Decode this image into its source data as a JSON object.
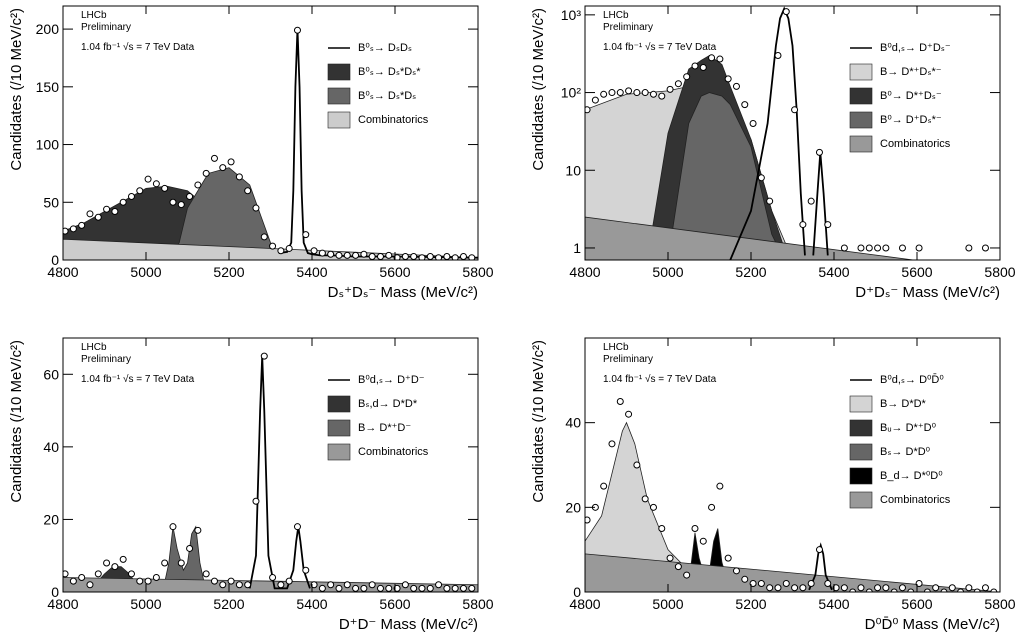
{
  "chart_data": [
    {
      "type": "fit",
      "x_label": "Dₛ⁺Dₛ⁻ Mass (MeV/c²)",
      "y_label": "Candidates (/10 MeV/c²)",
      "annotations": [
        "LHCb",
        "Preliminary",
        "1.04 fb⁻¹ √s = 7 TeV Data"
      ],
      "xlim": [
        4800,
        5800
      ],
      "xticks": [
        4800,
        5000,
        5200,
        5400,
        5600,
        5800
      ],
      "ylim": [
        0,
        220
      ],
      "yticks": [
        0,
        50,
        100,
        150,
        200
      ],
      "log": false,
      "legend": "upper right",
      "data": {
        "color": "#000000",
        "x": [
          4805,
          4825,
          4845,
          4865,
          4885,
          4905,
          4925,
          4945,
          4965,
          4985,
          5005,
          5025,
          5045,
          5065,
          5085,
          5105,
          5125,
          5145,
          5165,
          5185,
          5205,
          5225,
          5245,
          5265,
          5285,
          5305,
          5325,
          5345,
          5365,
          5385,
          5405,
          5425,
          5445,
          5465,
          5485,
          5505,
          5525,
          5545,
          5565,
          5585,
          5605,
          5625,
          5645,
          5665,
          5685,
          5705,
          5725,
          5745,
          5765,
          5785
        ],
        "values": [
          25,
          27,
          30,
          40,
          37,
          44,
          42,
          50,
          55,
          60,
          70,
          66,
          62,
          50,
          48,
          55,
          65,
          75,
          88,
          80,
          85,
          72,
          60,
          45,
          20,
          12,
          8,
          10,
          199,
          22,
          8,
          6,
          5,
          4,
          4,
          4,
          5,
          3,
          3,
          4,
          2,
          3,
          3,
          2,
          3,
          2,
          3,
          2,
          3,
          2
        ]
      },
      "series": [
        {
          "name": "B⁰ₛ→ DₛDₛ",
          "kind": "line",
          "color": "#000000",
          "x": [
            5320,
            5340,
            5350,
            5355,
            5360,
            5365,
            5370,
            5375,
            5380,
            5390,
            5400,
            5420,
            5450,
            5500,
            5600,
            5800
          ],
          "values": [
            6,
            7,
            15,
            60,
            150,
            200,
            150,
            60,
            15,
            6,
            5,
            4,
            4,
            3,
            3,
            2
          ]
        },
        {
          "name": "B⁰ₛ→ Dₛ*Dₛ*",
          "kind": "area",
          "color": "#333333",
          "x": [
            4800,
            4850,
            4900,
            4950,
            5000,
            5050,
            5100,
            5150,
            5200,
            5220,
            5240
          ],
          "values": [
            25,
            32,
            42,
            52,
            62,
            64,
            60,
            45,
            20,
            8,
            0
          ]
        },
        {
          "name": "B⁰ₛ→ Dₛ*Dₛ",
          "kind": "area",
          "color": "#666666",
          "x": [
            5050,
            5080,
            5100,
            5150,
            5200,
            5250,
            5280,
            5300,
            5320
          ],
          "values": [
            0,
            15,
            45,
            75,
            80,
            65,
            35,
            15,
            3
          ]
        },
        {
          "name": "Combinatorics",
          "kind": "area",
          "color": "#cccccc",
          "x": [
            4800,
            5800
          ],
          "values": [
            18,
            2
          ]
        }
      ]
    },
    {
      "type": "fit",
      "x_label": "D⁺Dₛ⁻ Mass (MeV/c²)",
      "y_label": "Candidates (/10 MeV/c²)",
      "annotations": [
        "LHCb",
        "Preliminary",
        "1.04 fb⁻¹ √s = 7 TeV Data"
      ],
      "xlim": [
        4800,
        5800
      ],
      "xticks": [
        4800,
        5000,
        5200,
        5400,
        5600,
        5800
      ],
      "ylim": [
        0.7,
        1300
      ],
      "yticks": [
        1,
        10,
        {
          "value": 100,
          "label": "10²"
        },
        {
          "value": 1000,
          "label": "10³"
        }
      ],
      "log": true,
      "legend": "upper right",
      "data": {
        "color": "#000000",
        "x": [
          4805,
          4825,
          4845,
          4865,
          4885,
          4905,
          4925,
          4945,
          4965,
          4985,
          5005,
          5025,
          5045,
          5065,
          5085,
          5105,
          5125,
          5145,
          5165,
          5185,
          5205,
          5225,
          5245,
          5265,
          5285,
          5305,
          5325,
          5345,
          5365,
          5385,
          5405,
          5425,
          5445,
          5465,
          5485,
          5505,
          5525,
          5545,
          5565,
          5585,
          5605,
          5625,
          5645,
          5665,
          5685,
          5705,
          5725,
          5745,
          5765,
          5785
        ],
        "values": [
          60,
          80,
          95,
          100,
          100,
          105,
          100,
          100,
          95,
          90,
          110,
          130,
          160,
          220,
          210,
          280,
          270,
          150,
          120,
          70,
          40,
          8,
          4,
          300,
          1100,
          60,
          2,
          4,
          17,
          2,
          null,
          1,
          null,
          1,
          1,
          1,
          1,
          null,
          1,
          null,
          1,
          null,
          null,
          null,
          null,
          null,
          1,
          null,
          1,
          null
        ]
      },
      "series": [
        {
          "name": "B⁰d,ₛ→ D⁺Dₛ⁻",
          "kind": "line",
          "color": "#000000",
          "x": [
            5150,
            5200,
            5240,
            5260,
            5270,
            5280,
            5290,
            5300,
            5310,
            5320,
            5330,
            5340,
            5350,
            5360,
            5367,
            5375,
            5385,
            5400
          ],
          "values": [
            0.7,
            3,
            40,
            400,
            900,
            1200,
            900,
            400,
            60,
            5,
            0.8,
            null,
            0.8,
            5,
            17,
            5,
            0.8,
            null
          ]
        },
        {
          "name": "B→ D*⁺Dₛ*⁻",
          "kind": "area",
          "color": "#d4d4d4",
          "x": [
            4800,
            4900,
            5000,
            5050,
            5100,
            5150,
            5200,
            5250,
            5300
          ],
          "values": [
            60,
            95,
            105,
            120,
            110,
            70,
            25,
            3,
            0.7
          ]
        },
        {
          "name": "B⁰→ D*⁺Dₛ⁻",
          "kind": "area",
          "color": "#333333",
          "x": [
            4950,
            5000,
            5050,
            5080,
            5100,
            5130,
            5150,
            5200,
            5250,
            5280,
            5300
          ],
          "values": [
            0.7,
            30,
            200,
            260,
            300,
            230,
            120,
            25,
            3,
            1,
            0.7
          ]
        },
        {
          "name": "B⁰→ D⁺Dₛ*⁻",
          "kind": "area",
          "color": "#666666",
          "x": [
            5000,
            5050,
            5080,
            5100,
            5130,
            5150,
            5200,
            5250,
            5280
          ],
          "values": [
            0.7,
            40,
            90,
            100,
            90,
            70,
            20,
            1.5,
            0.7
          ]
        },
        {
          "name": "Combinatorics",
          "kind": "area",
          "color": "#999999",
          "x": [
            4800,
            5800
          ],
          "values": [
            2.5,
            0.5
          ]
        }
      ]
    },
    {
      "type": "fit",
      "x_label": "D⁺D⁻ Mass (MeV/c²)",
      "y_label": "Candidates (/10 MeV/c²)",
      "annotations": [
        "LHCb",
        "Preliminary",
        "1.04 fb⁻¹ √s = 7 TeV Data"
      ],
      "xlim": [
        4800,
        5800
      ],
      "xticks": [
        4800,
        5000,
        5200,
        5400,
        5600,
        5800
      ],
      "ylim": [
        0,
        70
      ],
      "yticks": [
        0,
        20,
        40,
        60
      ],
      "log": false,
      "legend": "upper right",
      "data": {
        "color": "#000000",
        "x": [
          4805,
          4825,
          4845,
          4865,
          4885,
          4905,
          4925,
          4945,
          4965,
          4985,
          5005,
          5025,
          5045,
          5065,
          5085,
          5105,
          5125,
          5145,
          5165,
          5185,
          5205,
          5225,
          5245,
          5265,
          5285,
          5305,
          5325,
          5345,
          5365,
          5385,
          5405,
          5425,
          5445,
          5465,
          5485,
          5505,
          5525,
          5545,
          5565,
          5585,
          5605,
          5625,
          5645,
          5665,
          5685,
          5705,
          5725,
          5745,
          5765,
          5785
        ],
        "values": [
          5,
          3,
          4,
          2,
          5,
          8,
          7,
          9,
          5,
          3,
          3,
          4,
          8,
          18,
          8,
          12,
          17,
          5,
          3,
          2,
          3,
          2,
          2,
          25,
          65,
          4,
          2,
          3,
          18,
          6,
          2,
          1,
          2,
          1,
          2,
          1,
          1,
          2,
          1,
          1,
          1,
          2,
          1,
          1,
          1,
          2,
          1,
          1,
          1,
          1
        ]
      },
      "series": [
        {
          "name": "B⁰d,ₛ→ D⁺D⁻",
          "kind": "line",
          "color": "#000000",
          "x": [
            5250,
            5265,
            5275,
            5280,
            5285,
            5295,
            5310,
            5340,
            5355,
            5362,
            5367,
            5372,
            5380,
            5395
          ],
          "values": [
            1,
            10,
            50,
            65,
            50,
            10,
            1,
            1,
            6,
            14,
            18,
            14,
            6,
            1
          ]
        },
        {
          "name": "Bₛ,d→ D*D*",
          "kind": "area",
          "color": "#333333",
          "x": [
            4860,
            4900,
            4920,
            4940,
            4960,
            4990
          ],
          "values": [
            0,
            5,
            7,
            7,
            5,
            0
          ]
        },
        {
          "name": "B→ D*⁺D⁻",
          "kind": "area",
          "color": "#666666",
          "x": [
            5040,
            5055,
            5065,
            5075,
            5090,
            5100,
            5110,
            5120,
            5130,
            5145
          ],
          "values": [
            0,
            8,
            18,
            12,
            6,
            8,
            16,
            18,
            8,
            0
          ]
        },
        {
          "name": "Combinatorics",
          "kind": "area",
          "color": "#999999",
          "x": [
            4800,
            5800
          ],
          "values": [
            4,
            2
          ]
        }
      ]
    },
    {
      "type": "fit",
      "x_label": "D⁰D̄⁰ Mass (MeV/c²)",
      "y_label": "Candidates (/10 MeV/c²)",
      "annotations": [
        "LHCb",
        "Preliminary",
        "1.04 fb⁻¹ √s = 7 TeV Data"
      ],
      "xlim": [
        4800,
        5800
      ],
      "xticks": [
        4800,
        5000,
        5200,
        5400,
        5600,
        5800
      ],
      "ylim": [
        0,
        60
      ],
      "yticks": [
        0,
        20,
        40
      ],
      "log": false,
      "legend": "upper right",
      "data": {
        "color": "#000000",
        "x": [
          4805,
          4825,
          4845,
          4865,
          4885,
          4905,
          4925,
          4945,
          4965,
          4985,
          5005,
          5025,
          5045,
          5065,
          5085,
          5105,
          5125,
          5145,
          5165,
          5185,
          5205,
          5225,
          5245,
          5265,
          5285,
          5305,
          5325,
          5345,
          5365,
          5385,
          5405,
          5425,
          5445,
          5465,
          5485,
          5505,
          5525,
          5545,
          5565,
          5585,
          5605,
          5625,
          5645,
          5665,
          5685,
          5705,
          5725,
          5745,
          5765,
          5785
        ],
        "values": [
          17,
          20,
          25,
          35,
          45,
          42,
          30,
          22,
          20,
          15,
          8,
          6,
          4,
          15,
          12,
          20,
          25,
          8,
          5,
          3,
          2,
          2,
          1,
          1,
          2,
          1,
          1,
          2,
          10,
          2,
          1,
          1,
          0,
          1,
          0,
          1,
          1,
          0,
          1,
          0,
          2,
          0,
          1,
          0,
          1,
          0,
          1,
          0,
          1,
          0
        ]
      },
      "series": [
        {
          "name": "B⁰d,ₛ→ D⁰D̄⁰",
          "kind": "line",
          "color": "#000000",
          "x": [
            5340,
            5355,
            5362,
            5368,
            5374,
            5380,
            5395
          ],
          "values": [
            0.5,
            4,
            9,
            11,
            9,
            4,
            0.5
          ]
        },
        {
          "name": "B→ D*D*",
          "kind": "area",
          "color": "#d4d4d4",
          "x": [
            4800,
            4840,
            4870,
            4890,
            4900,
            4920,
            4950,
            5000,
            5050,
            5100,
            5150
          ],
          "values": [
            12,
            18,
            30,
            38,
            40,
            35,
            22,
            10,
            5,
            3,
            1
          ]
        },
        {
          "name": "Bᵤ→ D*⁺D⁰",
          "kind": "area",
          "color": "#333333",
          "x": [
            5050,
            5120,
            5200
          ],
          "values": [
            0,
            1,
            0
          ]
        },
        {
          "name": "Bₛ→ D*D⁰",
          "kind": "area",
          "color": "#666666",
          "x": [
            5000,
            5100,
            5200
          ],
          "values": [
            0,
            1,
            0
          ]
        },
        {
          "name": "B_d→ D*⁰D⁰",
          "kind": "area",
          "color": "#000000",
          "x": [
            5040,
            5055,
            5065,
            5075,
            5090,
            5100,
            5110,
            5120,
            5130,
            5145,
            5170
          ],
          "values": [
            1,
            6,
            14,
            8,
            3,
            5,
            12,
            15,
            7,
            2,
            1
          ]
        },
        {
          "name": "Combinatorics",
          "kind": "area",
          "color": "#999999",
          "x": [
            4800,
            5800
          ],
          "values": [
            9,
            0
          ]
        }
      ]
    }
  ]
}
